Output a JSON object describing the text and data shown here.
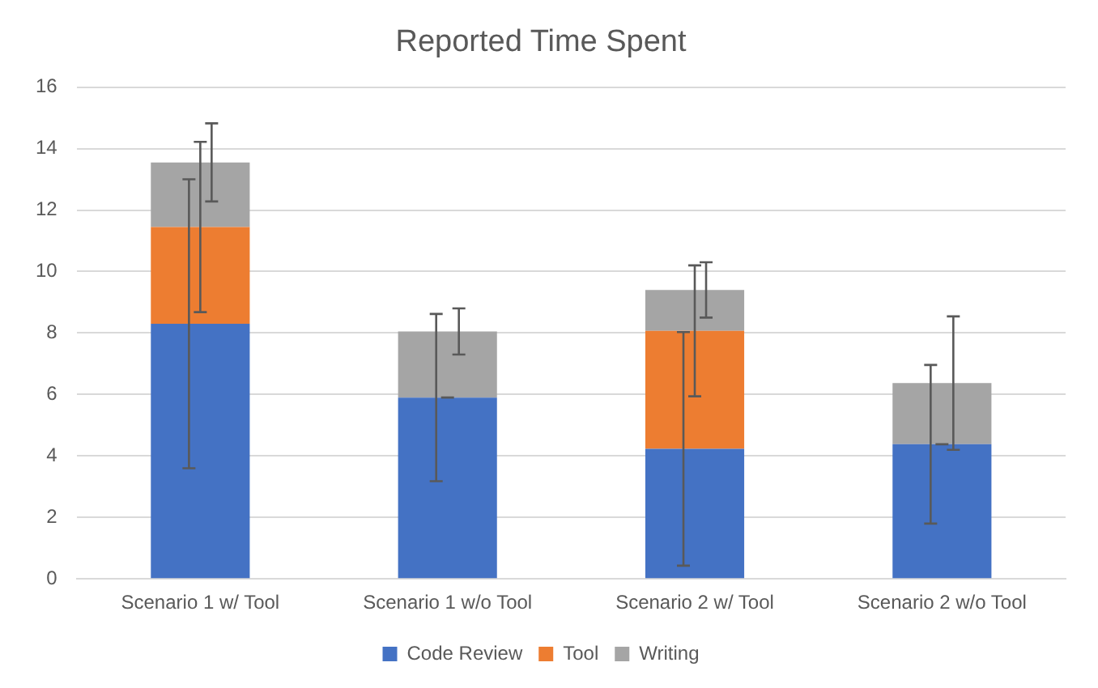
{
  "chart_data": {
    "type": "bar",
    "title": "Reported Time Spent",
    "stacked": true,
    "categories": [
      "Scenario 1 w/ Tool",
      "Scenario 1 w/o Tool",
      "Scenario 2 w/ Tool",
      "Scenario 2 w/o Tool"
    ],
    "series": [
      {
        "name": "Code Review",
        "color": "#4472c4",
        "values": [
          8.3,
          5.9,
          4.23,
          4.38
        ],
        "errors": [
          4.7,
          2.72,
          3.8,
          2.58
        ]
      },
      {
        "name": "Tool",
        "color": "#ed7d31",
        "values": [
          3.15,
          0,
          3.84,
          0
        ],
        "errors": [
          2.77,
          0,
          2.13,
          0
        ]
      },
      {
        "name": "Writing",
        "color": "#a5a5a5",
        "values": [
          2.1,
          2.15,
          1.33,
          1.99
        ],
        "errors": [
          1.27,
          0.75,
          0.9,
          2.17
        ]
      }
    ],
    "ylim": [
      0,
      16
    ],
    "yticks": [
      0,
      2,
      4,
      6,
      8,
      10,
      12,
      14,
      16
    ],
    "grid": "y",
    "legend": "bottom"
  }
}
